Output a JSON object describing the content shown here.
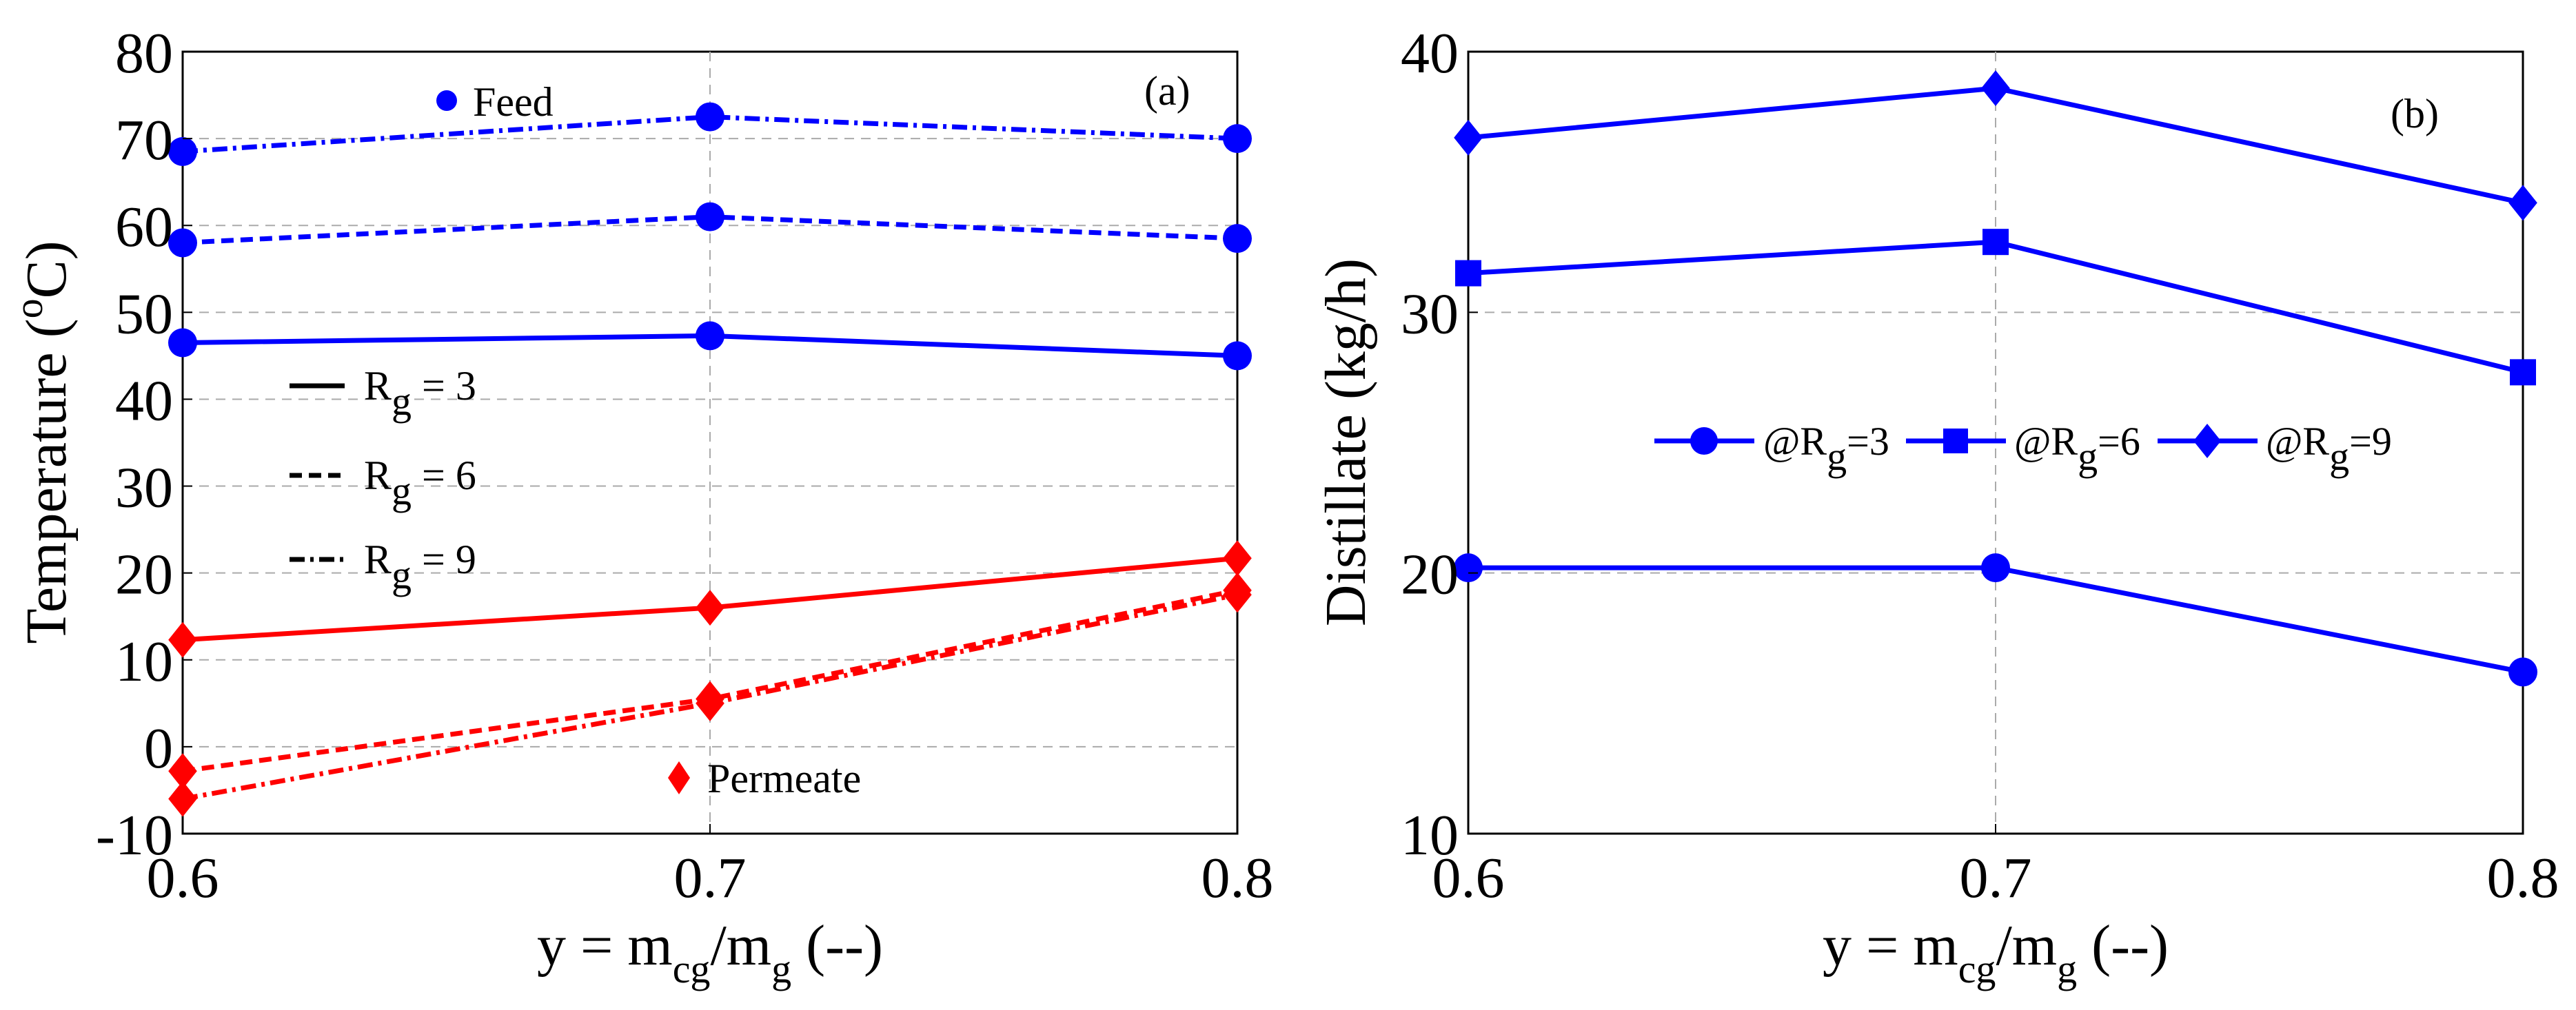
{
  "chart_data": [
    {
      "type": "line",
      "panel_label": "(a)",
      "ylabel_prefix": "Temperature (",
      "ylabel_sup": "o",
      "ylabel_suffix": "C)",
      "xlabel_prefix": "y = m",
      "xlabel_sub1": "cg",
      "xlabel_mid": "/m",
      "xlabel_sub2": "g",
      "xlabel_suffix": " (--)",
      "x_ticks": [
        "0.6",
        "0.7",
        "0.8"
      ],
      "y_ticks": [
        "-10",
        "0",
        "10",
        "20",
        "30",
        "40",
        "50",
        "60",
        "70",
        "80"
      ],
      "xlim": [
        0.6,
        0.8
      ],
      "ylim": [
        -10,
        80
      ],
      "grid": true,
      "x": [
        0.6,
        0.7,
        0.8
      ],
      "series": [
        {
          "name": "Feed R_g = 3",
          "group": "Feed",
          "style": "solid",
          "color": "#0000ff",
          "marker": "circle",
          "values": [
            46.5,
            47.3,
            45.0
          ]
        },
        {
          "name": "Feed R_g = 6",
          "group": "Feed",
          "style": "dashed",
          "color": "#0000ff",
          "marker": "circle",
          "values": [
            58.0,
            61.0,
            58.5
          ]
        },
        {
          "name": "Feed R_g = 9",
          "group": "Feed",
          "style": "dashdot",
          "color": "#0000ff",
          "marker": "circle",
          "values": [
            68.5,
            72.5,
            70.0
          ]
        },
        {
          "name": "Permeate R_g = 3",
          "group": "Permeate",
          "style": "solid",
          "color": "#ff0000",
          "marker": "diamond",
          "values": [
            12.3,
            16.0,
            21.7
          ]
        },
        {
          "name": "Permeate R_g = 6",
          "group": "Permeate",
          "style": "dashed",
          "color": "#ff0000",
          "marker": "diamond",
          "values": [
            -2.8,
            5.5,
            18.0
          ]
        },
        {
          "name": "Permeate R_g = 9",
          "group": "Permeate",
          "style": "dashdot",
          "color": "#ff0000",
          "marker": "diamond",
          "values": [
            -6.0,
            5.0,
            17.5
          ]
        }
      ],
      "annotations": {
        "feed_label": "Feed",
        "permeate_label": "Permeate",
        "style_legend": [
          {
            "style": "solid",
            "prefix": "R",
            "sub": "g",
            "suffix": " = 3"
          },
          {
            "style": "dashed",
            "prefix": "R",
            "sub": "g",
            "suffix": " = 6"
          },
          {
            "style": "dashdot",
            "prefix": "R",
            "sub": "g",
            "suffix": " = 9"
          }
        ]
      }
    },
    {
      "type": "line",
      "panel_label": "(b)",
      "ylabel": "Distillate (kg/h)",
      "xlabel_prefix": "y = m",
      "xlabel_sub1": "cg",
      "xlabel_mid": "/m",
      "xlabel_sub2": "g",
      "xlabel_suffix": " (--)",
      "x_ticks": [
        "0.6",
        "0.7",
        "0.8"
      ],
      "y_ticks": [
        "10",
        "20",
        "30",
        "40"
      ],
      "xlim": [
        0.6,
        0.8
      ],
      "ylim": [
        10,
        40
      ],
      "grid": true,
      "x": [
        0.6,
        0.7,
        0.8
      ],
      "series": [
        {
          "name": "@R_g=3",
          "color": "#0000ff",
          "marker": "circle",
          "values": [
            20.2,
            20.2,
            16.2
          ]
        },
        {
          "name": "@R_g=6",
          "color": "#0000ff",
          "marker": "square",
          "values": [
            31.5,
            32.7,
            27.7
          ]
        },
        {
          "name": "@R_g=9",
          "color": "#0000ff",
          "marker": "diamond",
          "values": [
            36.7,
            38.6,
            34.2
          ]
        }
      ],
      "legend": [
        {
          "prefix": "@R",
          "sub": "g",
          "suffix": "=3",
          "marker": "circle"
        },
        {
          "prefix": "@R",
          "sub": "g",
          "suffix": "=6",
          "marker": "square"
        },
        {
          "prefix": "@R",
          "sub": "g",
          "suffix": "=9",
          "marker": "diamond"
        }
      ],
      "legend_position": "middle"
    }
  ]
}
